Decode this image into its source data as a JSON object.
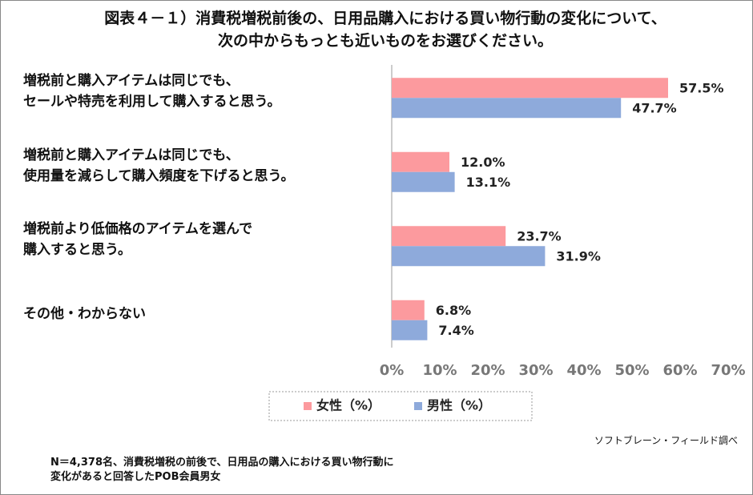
{
  "chart_data": {
    "type": "bar",
    "orientation": "horizontal",
    "title": "図表４－１）消費税増税前後の、日用品購入における買い物行動の変化について、\n次の中からもっとも近いものをお選びください。",
    "categories": [
      "増税前と購入アイテムは同じでも、\nセールや特売を利用して購入すると思う。",
      "増税前と購入アイテムは同じでも、\n使用量を減らして購入頻度を下げると思う。",
      "増税前より低価格のアイテムを選んで\n購入すると思う。",
      "その他・わからない"
    ],
    "series": [
      {
        "name": "女性（%）",
        "color": "#fc9a9e",
        "values": [
          57.5,
          12.0,
          23.7,
          6.8
        ],
        "value_labels": [
          "57.5%",
          "12.0%",
          "23.7%",
          "6.8%"
        ]
      },
      {
        "name": "男性（%）",
        "color": "#8eaadb",
        "values": [
          47.7,
          13.1,
          31.9,
          7.4
        ],
        "value_labels": [
          "47.7%",
          "13.1%",
          "31.9%",
          "7.4%"
        ]
      }
    ],
    "xlim": [
      0,
      70
    ],
    "xticks": [
      {
        "value": 0,
        "label": "0%"
      },
      {
        "value": 10,
        "label": "10%"
      },
      {
        "value": 20,
        "label": "20%"
      },
      {
        "value": 30,
        "label": "30%"
      },
      {
        "value": 40,
        "label": "40%"
      },
      {
        "value": 50,
        "label": "50%"
      },
      {
        "value": 60,
        "label": "60%"
      },
      {
        "value": 70,
        "label": "70%"
      }
    ],
    "grid": false,
    "legend": "bottom",
    "source": "ソフトブレーン・フィールド調べ",
    "note": "N＝4,378名、消費税増税の前後で、日用品の購入における買い物行動に\n変化があると回答したPOB会員男女"
  }
}
